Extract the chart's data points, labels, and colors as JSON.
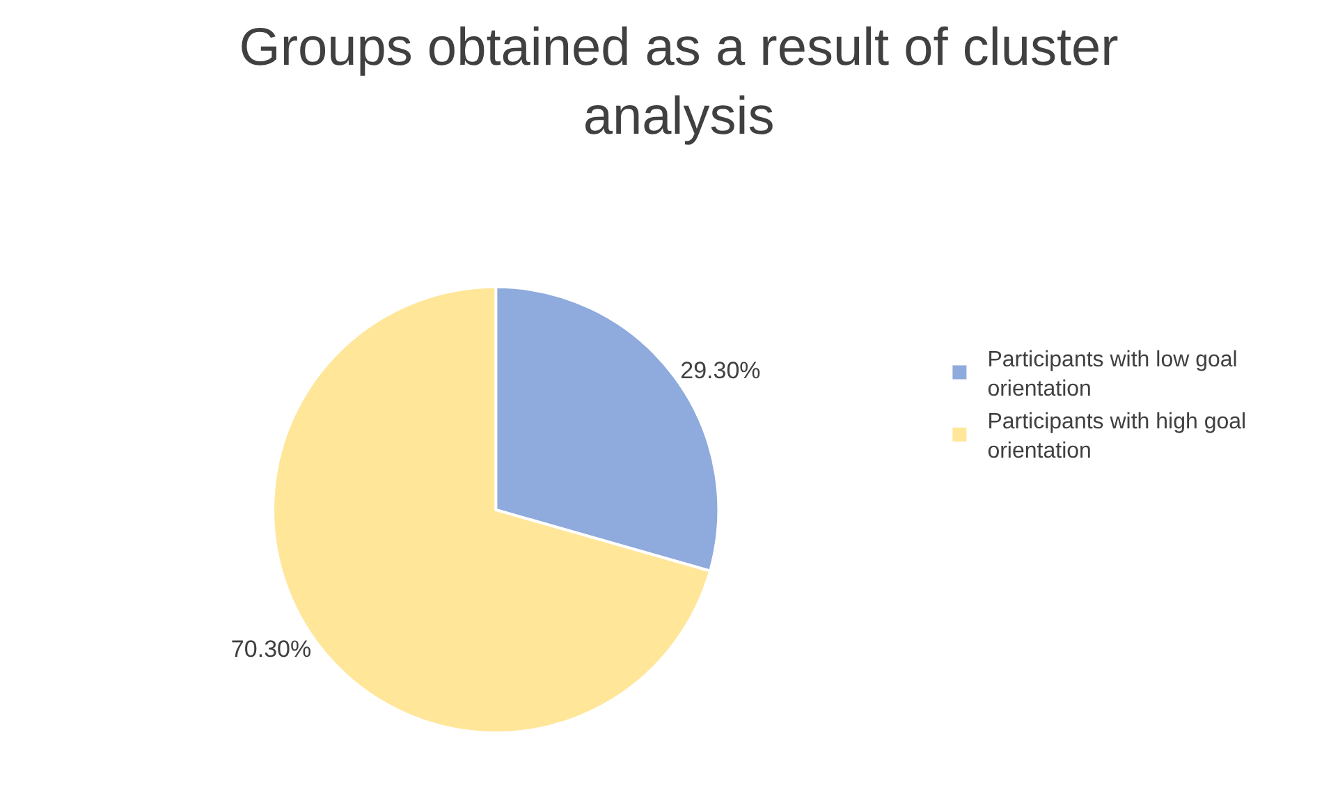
{
  "chart_data": {
    "type": "pie",
    "title": "Groups obtained as a result of cluster analysis",
    "categories": [
      "Participants with low goal orientation",
      "Participants with high goal orientation"
    ],
    "values": [
      29.3,
      70.3
    ],
    "colors": [
      "#8faadc",
      "#ffe699"
    ],
    "value_labels": [
      "29.30%",
      "70.30%"
    ],
    "legend": "right"
  }
}
